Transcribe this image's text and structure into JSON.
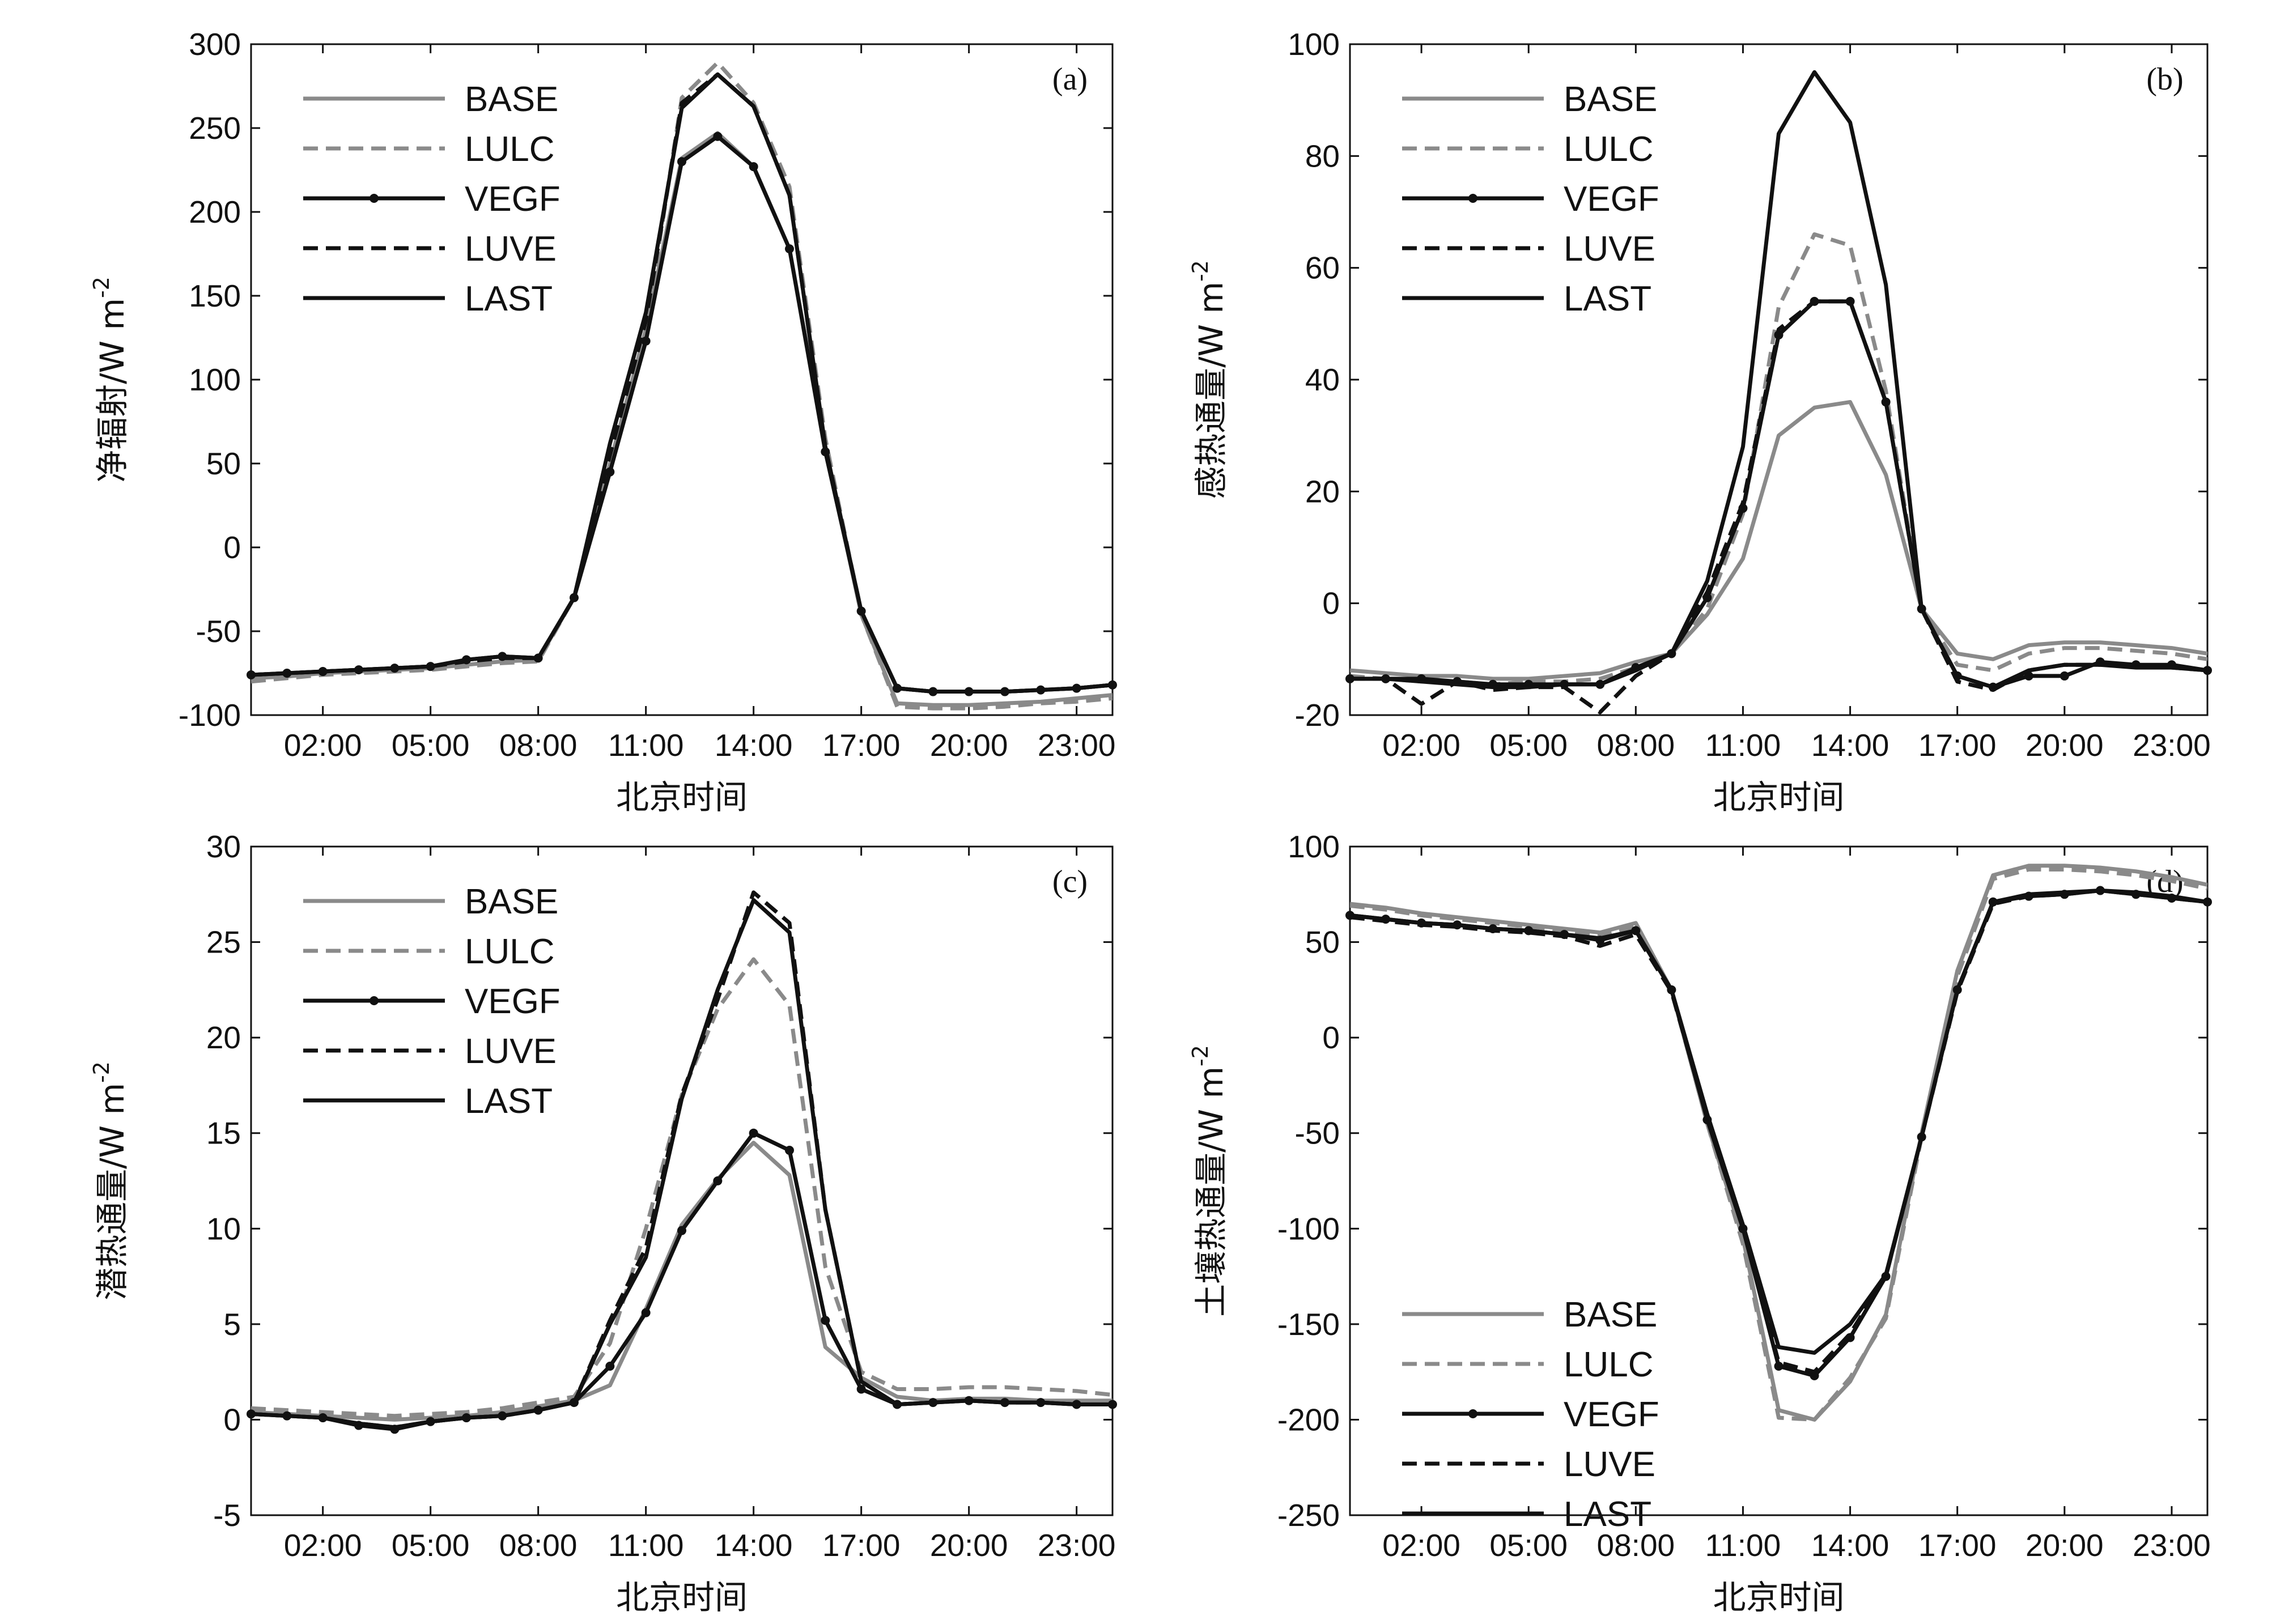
{
  "x_tick_labels": [
    "02:00",
    "05:00",
    "08:00",
    "11:00",
    "14:00",
    "17:00",
    "20:00",
    "23:00"
  ],
  "series_style": {
    "BASE": {
      "color": "#8a8a8a",
      "dash": "",
      "marker": false
    },
    "LULC": {
      "color": "#8a8a8a",
      "dash": "dashed",
      "marker": false
    },
    "VEGF": {
      "color": "#111111",
      "dash": "",
      "marker": true
    },
    "LUVE": {
      "color": "#111111",
      "dash": "dashed",
      "marker": false
    },
    "LAST": {
      "color": "#111111",
      "dash": "",
      "marker": false
    }
  },
  "chart_data": [
    {
      "type": "line",
      "panel_label": "(a)",
      "title": "",
      "xlabel": "北京时间",
      "ylabel": "净辐射/W m-2",
      "ylabel_main": "净辐射/W m",
      "ylabel_sup": "-2",
      "ylim": [
        -100,
        300
      ],
      "yticks": [
        -100,
        -50,
        0,
        50,
        100,
        150,
        200,
        250,
        300
      ],
      "xlim": [
        0,
        24
      ],
      "legend_position": "top-left",
      "x": [
        0,
        1,
        2,
        3,
        4,
        5,
        6,
        7,
        8,
        9,
        10,
        11,
        12,
        13,
        14,
        15,
        16,
        17,
        18,
        19,
        20,
        21,
        22,
        23,
        24
      ],
      "series": [
        {
          "name": "BASE",
          "values": [
            -78,
            -77,
            -75,
            -74,
            -73,
            -72,
            -70,
            -68,
            -67,
            -30,
            50,
            130,
            232,
            247,
            227,
            178,
            60,
            -40,
            -93,
            -94,
            -94,
            -93,
            -92,
            -90,
            -88
          ]
        },
        {
          "name": "LULC",
          "values": [
            -80,
            -78,
            -76,
            -75,
            -74,
            -73,
            -71,
            -69,
            -68,
            -30,
            50,
            130,
            268,
            289,
            265,
            215,
            65,
            -40,
            -95,
            -96,
            -96,
            -95,
            -93,
            -92,
            -90
          ]
        },
        {
          "name": "VEGF",
          "values": [
            -76,
            -75,
            -74,
            -73,
            -72,
            -71,
            -67,
            -65,
            -66,
            -30,
            45,
            123,
            230,
            245,
            227,
            178,
            57,
            -38,
            -84,
            -86,
            -86,
            -86,
            -85,
            -84,
            -82
          ]
        },
        {
          "name": "LUVE",
          "values": [
            -76,
            -75,
            -74,
            -73,
            -72,
            -71,
            -68,
            -66,
            -66,
            -30,
            55,
            135,
            265,
            282,
            263,
            210,
            60,
            -38,
            -84,
            -86,
            -86,
            -86,
            -85,
            -84,
            -82
          ]
        },
        {
          "name": "LAST",
          "values": [
            -76,
            -75,
            -74,
            -73,
            -72,
            -71,
            -67,
            -65,
            -66,
            -30,
            62,
            140,
            262,
            282,
            263,
            210,
            60,
            -38,
            -84,
            -86,
            -86,
            -86,
            -85,
            -84,
            -82
          ]
        }
      ]
    },
    {
      "type": "line",
      "panel_label": "(b)",
      "title": "",
      "xlabel": "北京时间",
      "ylabel": "感热通量/W m-2",
      "ylabel_main": "感热通量/W m",
      "ylabel_sup": "-2",
      "ylim": [
        -20,
        100
      ],
      "yticks": [
        -20,
        0,
        20,
        40,
        60,
        80,
        100
      ],
      "xlim": [
        0,
        24
      ],
      "legend_position": "top-left",
      "x": [
        0,
        1,
        2,
        3,
        4,
        5,
        6,
        7,
        8,
        9,
        10,
        11,
        12,
        13,
        14,
        15,
        16,
        17,
        18,
        19,
        20,
        21,
        22,
        23,
        24
      ],
      "series": [
        {
          "name": "BASE",
          "values": [
            -12,
            -12.5,
            -13,
            -13,
            -13.5,
            -13.5,
            -13,
            -12.5,
            -10.5,
            -9,
            -2,
            8,
            30,
            35,
            36,
            23,
            -1,
            -9,
            -10,
            -7.5,
            -7,
            -7,
            -7.5,
            -8,
            -9
          ]
        },
        {
          "name": "LULC",
          "values": [
            -13,
            -13.5,
            -14,
            -14,
            -14.5,
            -14,
            -14,
            -13.5,
            -11.5,
            -9,
            -1,
            16,
            53,
            66,
            64,
            38,
            -1,
            -11,
            -12,
            -9,
            -8,
            -8,
            -8.5,
            -9,
            -10
          ]
        },
        {
          "name": "VEGF",
          "values": [
            -13.5,
            -13.5,
            -13.5,
            -14,
            -14.5,
            -14.5,
            -14.5,
            -14.5,
            -11.5,
            -9,
            1,
            17,
            48,
            54,
            54,
            36,
            -1,
            -13,
            -15,
            -13,
            -13,
            -10.5,
            -11,
            -11,
            -12
          ]
        },
        {
          "name": "LUVE",
          "values": [
            -13.5,
            -13.5,
            -18,
            -14,
            -15.5,
            -15,
            -15,
            -19.5,
            -13,
            -9,
            2,
            18,
            49,
            54,
            54,
            36,
            -1,
            -14,
            -15.5,
            -12,
            -11,
            -11,
            -11,
            -11.5,
            -12
          ]
        },
        {
          "name": "LAST",
          "values": [
            -13.5,
            -13.5,
            -14,
            -14.5,
            -15,
            -15,
            -14.5,
            -14.5,
            -12,
            -9,
            4,
            28,
            84,
            95,
            86,
            57,
            -1,
            -13,
            -15,
            -12,
            -11,
            -11,
            -11.5,
            -11.5,
            -12
          ]
        }
      ]
    },
    {
      "type": "line",
      "panel_label": "(c)",
      "title": "",
      "xlabel": "北京时间",
      "ylabel": "潜热通量/W m-2",
      "ylabel_main": "潜热通量/W m",
      "ylabel_sup": "-2",
      "ylim": [
        -5,
        30
      ],
      "yticks": [
        -5,
        0,
        5,
        10,
        15,
        20,
        25,
        30
      ],
      "xlim": [
        0,
        24
      ],
      "legend_position": "top-left",
      "x": [
        0,
        1,
        2,
        3,
        4,
        5,
        6,
        7,
        8,
        9,
        10,
        11,
        12,
        13,
        14,
        15,
        16,
        17,
        18,
        19,
        20,
        21,
        22,
        23,
        24
      ],
      "series": [
        {
          "name": "BASE",
          "values": [
            0.4,
            0.3,
            0.2,
            0.1,
            0,
            0.1,
            0.2,
            0.4,
            0.7,
            1.0,
            1.8,
            5.8,
            10.2,
            12.6,
            14.5,
            12.8,
            3.8,
            2.2,
            1.2,
            1.0,
            1.1,
            1.1,
            1.0,
            1.0,
            1.0
          ]
        },
        {
          "name": "LULC",
          "values": [
            0.6,
            0.5,
            0.4,
            0.3,
            0.2,
            0.3,
            0.4,
            0.6,
            0.9,
            1.2,
            4.0,
            10.0,
            17.0,
            21.5,
            24.1,
            21.7,
            8.0,
            2.5,
            1.6,
            1.6,
            1.7,
            1.7,
            1.6,
            1.5,
            1.3
          ]
        },
        {
          "name": "VEGF",
          "values": [
            0.3,
            0.2,
            0.1,
            -0.3,
            -0.5,
            -0.1,
            0.1,
            0.2,
            0.5,
            0.9,
            2.8,
            5.6,
            9.9,
            12.5,
            15.0,
            14.1,
            5.2,
            1.6,
            0.8,
            0.9,
            1.0,
            0.9,
            0.9,
            0.8,
            0.8
          ]
        },
        {
          "name": "LUVE",
          "values": [
            0.3,
            0.2,
            0.1,
            -0.2,
            -0.4,
            -0.1,
            0.1,
            0.2,
            0.5,
            0.9,
            5.2,
            9.0,
            17.0,
            22.0,
            27.6,
            26.0,
            11.0,
            2.0,
            0.8,
            0.9,
            1.0,
            0.9,
            0.9,
            0.8,
            0.8
          ]
        },
        {
          "name": "LAST",
          "values": [
            0.3,
            0.2,
            0.1,
            -0.2,
            -0.4,
            -0.1,
            0.1,
            0.2,
            0.5,
            0.9,
            5.0,
            8.5,
            16.8,
            22.5,
            27.2,
            25.5,
            11.0,
            2.0,
            0.8,
            0.9,
            1.0,
            0.9,
            0.9,
            0.8,
            0.8
          ]
        }
      ]
    },
    {
      "type": "line",
      "panel_label": "(d)",
      "title": "",
      "xlabel": "北京时间",
      "ylabel": "土壤热通量/W m-2",
      "ylabel_main": "土壤热通量/W m",
      "ylabel_sup": "-2",
      "ylim": [
        -250,
        100
      ],
      "yticks": [
        -250,
        -200,
        -150,
        -100,
        -50,
        0,
        50,
        100
      ],
      "xlim": [
        0,
        24
      ],
      "legend_position": "bottom-left",
      "x": [
        0,
        1,
        2,
        3,
        4,
        5,
        6,
        7,
        8,
        9,
        10,
        11,
        12,
        13,
        14,
        15,
        16,
        17,
        18,
        19,
        20,
        21,
        22,
        23,
        24
      ],
      "series": [
        {
          "name": "BASE",
          "values": [
            70,
            68,
            65,
            63,
            61,
            59,
            57,
            55,
            60,
            25,
            -45,
            -105,
            -195,
            -200,
            -180,
            -145,
            -50,
            35,
            85,
            90,
            90,
            89,
            87,
            84,
            80
          ]
        },
        {
          "name": "LULC",
          "values": [
            69,
            67,
            64,
            62,
            60,
            58,
            56,
            53,
            58,
            25,
            -45,
            -108,
            -199,
            -200,
            -178,
            -147,
            -52,
            32,
            83,
            88,
            88,
            87,
            85,
            82,
            78
          ]
        },
        {
          "name": "VEGF",
          "values": [
            64,
            62,
            60,
            59,
            57,
            56,
            54,
            51,
            56,
            25,
            -43,
            -100,
            -172,
            -177,
            -157,
            -125,
            -52,
            25,
            71,
            74,
            75,
            77,
            75,
            73,
            71
          ]
        },
        {
          "name": "LUVE",
          "values": [
            63,
            61,
            59,
            58,
            56,
            55,
            53,
            48,
            54,
            24,
            -42,
            -100,
            -170,
            -175,
            -155,
            -125,
            -52,
            24,
            70,
            74,
            75,
            77,
            75,
            73,
            71
          ]
        },
        {
          "name": "LAST",
          "values": [
            64,
            62,
            60,
            59,
            57,
            56,
            54,
            52,
            56,
            25,
            -40,
            -98,
            -162,
            -165,
            -150,
            -124,
            -52,
            25,
            71,
            75,
            76,
            77,
            76,
            74,
            71
          ]
        }
      ]
    }
  ]
}
